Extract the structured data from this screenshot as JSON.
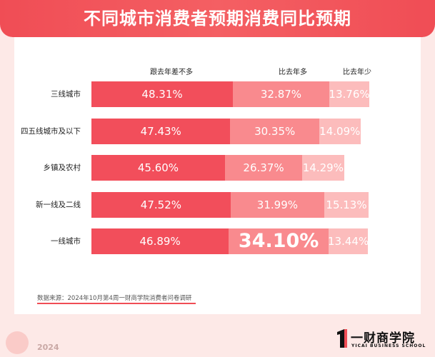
{
  "chart_data": {
    "type": "bar",
    "stacked": true,
    "orientation": "horizontal",
    "title": "不同城市消费者预期消费同比预期",
    "categories": [
      "三线城市",
      "四五线城市及以下",
      "乡镇及农村",
      "新一线及二线",
      "一线城市"
    ],
    "series": [
      {
        "name": "跟去年差不多",
        "values": [
          48.31,
          47.43,
          45.6,
          47.52,
          46.89
        ],
        "labels": [
          "48.31%",
          "47.43%",
          "45.60%",
          "47.52%",
          "46.89%"
        ]
      },
      {
        "name": "比去年多",
        "values": [
          32.87,
          30.35,
          26.37,
          31.99,
          34.1
        ],
        "labels": [
          "32.87%",
          "30.35%",
          "26.37%",
          "31.99%",
          "34.10%"
        ]
      },
      {
        "name": "比去年少",
        "values": [
          13.76,
          14.09,
          14.29,
          15.13,
          13.44
        ],
        "labels": [
          "13.76%",
          "14.09%",
          "14.29%",
          "15.13%",
          "13.44%"
        ]
      }
    ],
    "highlight": {
      "category_index": 4,
      "series_index": 1
    },
    "colors": [
      "#f24e5b",
      "#f98a8e",
      "#fcbcbc"
    ]
  },
  "footer": {
    "source": "数据来源：2024年10月第4周一财商学院消费者问卷调研",
    "year": "2024",
    "brand_name": "一财商学院",
    "brand_sub": "YICAI BUSINESS SCHOOL"
  }
}
